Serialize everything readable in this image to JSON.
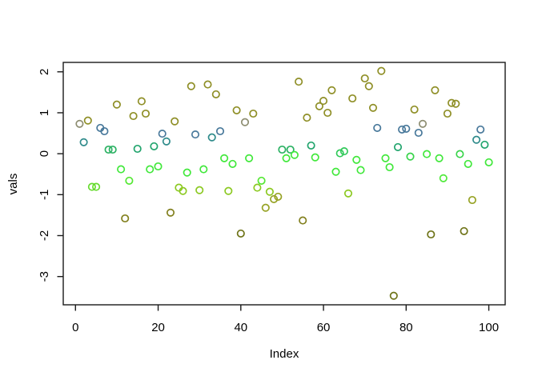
{
  "figure": {
    "background": "#FFFFFF",
    "frame_color": "#000000"
  },
  "chart_data": {
    "type": "scatter",
    "title": "",
    "xlabel": "Index",
    "ylabel": "vals",
    "marker": "open-circle",
    "grid": false,
    "legend": null,
    "x_ticks": [
      0,
      20,
      40,
      60,
      80,
      100
    ],
    "y_ticks": [
      -3,
      -2,
      -1,
      0,
      1,
      2
    ],
    "x_tick_labels": [
      "0",
      "20",
      "40",
      "60",
      "80",
      "100"
    ],
    "y_tick_labels": [
      "-3",
      "-2",
      "-1",
      "0",
      "1",
      "2"
    ],
    "xlim": [
      -2.96,
      103.96
    ],
    "ylim": [
      -3.69,
      2.23
    ],
    "n_points": 100,
    "points": [
      [
        1,
        0.73,
        "#8E8E72"
      ],
      [
        2,
        0.28,
        "#2F8B8B"
      ],
      [
        3,
        0.81,
        "#8F8F27"
      ],
      [
        4,
        -0.81,
        "#66DB2E"
      ],
      [
        5,
        -0.81,
        "#66DB2E"
      ],
      [
        6,
        0.63,
        "#49799B"
      ],
      [
        7,
        0.55,
        "#49799B"
      ],
      [
        8,
        0.1,
        "#2BB163"
      ],
      [
        9,
        0.1,
        "#2BB163"
      ],
      [
        10,
        1.2,
        "#8F8F27"
      ],
      [
        11,
        -0.38,
        "#41E83B"
      ],
      [
        12,
        -1.58,
        "#82801E"
      ],
      [
        13,
        -0.66,
        "#55E834"
      ],
      [
        14,
        0.92,
        "#8F8F27"
      ],
      [
        15,
        0.12,
        "#23A56E"
      ],
      [
        16,
        1.28,
        "#8F8F27"
      ],
      [
        17,
        0.98,
        "#8F8F27"
      ],
      [
        18,
        -0.38,
        "#41E83B"
      ],
      [
        19,
        0.18,
        "#23A56E"
      ],
      [
        20,
        -0.31,
        "#41E83B"
      ],
      [
        21,
        0.49,
        "#49799B"
      ],
      [
        22,
        0.3,
        "#2F8B8B"
      ],
      [
        23,
        -1.44,
        "#82801E"
      ],
      [
        24,
        0.79,
        "#8F8F27"
      ],
      [
        25,
        -0.83,
        "#8CC922"
      ],
      [
        26,
        -0.91,
        "#8CC922"
      ],
      [
        27,
        -0.46,
        "#41E83B"
      ],
      [
        28,
        1.65,
        "#8F8F27"
      ],
      [
        29,
        0.47,
        "#49799B"
      ],
      [
        30,
        -0.89,
        "#8CC922"
      ],
      [
        31,
        -0.38,
        "#41E83B"
      ],
      [
        32,
        1.69,
        "#8F8F27"
      ],
      [
        33,
        0.4,
        "#2F8B8B"
      ],
      [
        34,
        1.45,
        "#8F8F27"
      ],
      [
        35,
        0.55,
        "#49799B"
      ],
      [
        36,
        -0.11,
        "#41E83B"
      ],
      [
        37,
        -0.91,
        "#8CC922"
      ],
      [
        38,
        -0.25,
        "#41E83B"
      ],
      [
        39,
        1.06,
        "#8F8F27"
      ],
      [
        40,
        -1.95,
        "#6F7419"
      ],
      [
        41,
        0.77,
        "#8E8E72"
      ],
      [
        42,
        -0.11,
        "#41E83B"
      ],
      [
        43,
        0.98,
        "#8F8F27"
      ],
      [
        44,
        -0.83,
        "#8CC922"
      ],
      [
        45,
        -0.66,
        "#55E834"
      ],
      [
        46,
        -1.32,
        "#97A326"
      ],
      [
        47,
        -0.93,
        "#8CC922"
      ],
      [
        48,
        -1.11,
        "#97A326"
      ],
      [
        49,
        -1.05,
        "#97A326"
      ],
      [
        50,
        0.1,
        "#2BB163"
      ],
      [
        51,
        -0.11,
        "#41E83B"
      ],
      [
        52,
        0.1,
        "#2BB163"
      ],
      [
        53,
        -0.03,
        "#41E83B"
      ],
      [
        54,
        1.76,
        "#8F8F27"
      ],
      [
        55,
        -1.63,
        "#82801E"
      ],
      [
        56,
        0.88,
        "#8F8F27"
      ],
      [
        57,
        0.2,
        "#23A56E"
      ],
      [
        58,
        -0.09,
        "#41E83B"
      ],
      [
        59,
        1.16,
        "#8F8F27"
      ],
      [
        60,
        1.29,
        "#8F8F27"
      ],
      [
        61,
        1.0,
        "#8F8F27"
      ],
      [
        62,
        1.55,
        "#8F8F27"
      ],
      [
        63,
        -0.44,
        "#41E83B"
      ],
      [
        64,
        0.01,
        "#31C95A"
      ],
      [
        65,
        0.06,
        "#31C95A"
      ],
      [
        66,
        -0.97,
        "#8CC922"
      ],
      [
        67,
        1.35,
        "#8F8F27"
      ],
      [
        68,
        -0.15,
        "#41E83B"
      ],
      [
        69,
        -0.4,
        "#41E83B"
      ],
      [
        70,
        1.84,
        "#8F8F27"
      ],
      [
        71,
        1.65,
        "#8F8F27"
      ],
      [
        72,
        1.12,
        "#8F8F27"
      ],
      [
        73,
        0.63,
        "#49799B"
      ],
      [
        74,
        2.02,
        "#8F8F27"
      ],
      [
        75,
        -0.11,
        "#41E83B"
      ],
      [
        76,
        -0.33,
        "#41E83B"
      ],
      [
        77,
        -3.47,
        "#6F7419"
      ],
      [
        78,
        0.16,
        "#23A56E"
      ],
      [
        79,
        0.59,
        "#49799B"
      ],
      [
        80,
        0.61,
        "#49799B"
      ],
      [
        81,
        -0.07,
        "#38D44A"
      ],
      [
        82,
        1.08,
        "#8F8F27"
      ],
      [
        83,
        0.51,
        "#49799B"
      ],
      [
        84,
        0.73,
        "#8E8E72"
      ],
      [
        85,
        -0.01,
        "#41E83B"
      ],
      [
        86,
        -1.97,
        "#6F7419"
      ],
      [
        87,
        1.55,
        "#8F8F27"
      ],
      [
        88,
        -0.11,
        "#41E83B"
      ],
      [
        89,
        -0.6,
        "#4FEA3A"
      ],
      [
        90,
        0.98,
        "#8F8F27"
      ],
      [
        91,
        1.24,
        "#8F8F27"
      ],
      [
        92,
        1.22,
        "#8F8F27"
      ],
      [
        93,
        -0.01,
        "#38D44A"
      ],
      [
        94,
        -1.89,
        "#6F7419"
      ],
      [
        95,
        -0.25,
        "#41E83B"
      ],
      [
        96,
        -1.13,
        "#97A326"
      ],
      [
        97,
        0.34,
        "#2F8B8B"
      ],
      [
        98,
        0.59,
        "#49799B"
      ],
      [
        99,
        0.22,
        "#23A56E"
      ],
      [
        100,
        -0.21,
        "#41E83B"
      ]
    ]
  }
}
